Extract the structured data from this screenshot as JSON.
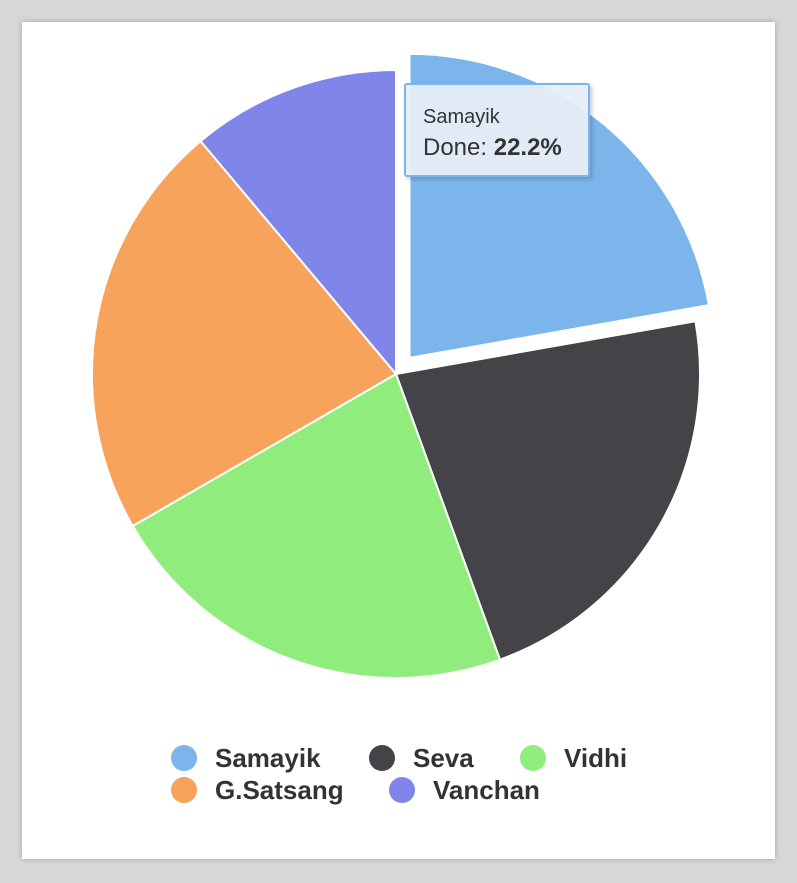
{
  "chart_data": {
    "type": "pie",
    "categories": [
      "Samayik",
      "Seva",
      "Vidhi",
      "G.Satsang",
      "Vanchan"
    ],
    "values": [
      22.2,
      22.2,
      22.2,
      22.2,
      11.1
    ],
    "colors": [
      "#7cb5ec",
      "#434348",
      "#90ed7d",
      "#f7a35c",
      "#8085e9"
    ],
    "selected": "Samayik",
    "legend_position": "bottom"
  },
  "tooltip": {
    "series": "Samayik",
    "label": "Done:",
    "value": "22.2%"
  }
}
